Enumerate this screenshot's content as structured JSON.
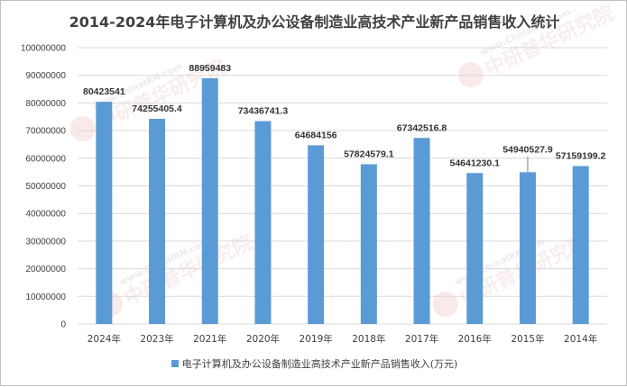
{
  "chart_data": {
    "type": "bar",
    "title": "2014-2024年电子计算机及办公设备制造业高技术产业新产品销售收入统计",
    "categories": [
      "2024年",
      "2023年",
      "2021年",
      "2020年",
      "2019年",
      "2018年",
      "2017年",
      "2016年",
      "2015年",
      "2014年"
    ],
    "series": [
      {
        "name": "电子计算机及办公设备制造业高技术产业新产品销售收入(万元)",
        "values": [
          80423541,
          74255405.4,
          88959483,
          73436741.3,
          64684156,
          57824579.1,
          67342516.8,
          54641230.1,
          54940527.9,
          57159199.2
        ],
        "labels": [
          "80423541",
          "74255405.4",
          "88959483",
          "73436741.3",
          "64684156",
          "57824579.1",
          "67342516.8",
          "54641230.1",
          "54940527.9",
          "57159199.2"
        ]
      }
    ],
    "ylim": [
      0,
      100000000
    ],
    "yticks": [
      0,
      10000000,
      20000000,
      30000000,
      40000000,
      50000000,
      60000000,
      70000000,
      80000000,
      90000000,
      100000000
    ],
    "ytick_labels": [
      "0",
      "10000000",
      "20000000",
      "30000000",
      "40000000",
      "50000000",
      "60000000",
      "70000000",
      "80000000",
      "90000000",
      "100000000"
    ],
    "grid": true,
    "legend": "bottom",
    "bar_color": "#5b9bd5"
  },
  "watermark": {
    "url_text": "www.ChinaIRN.com",
    "name_text": "中研普华研究院",
    "logo_text": "ChinaIRN"
  }
}
